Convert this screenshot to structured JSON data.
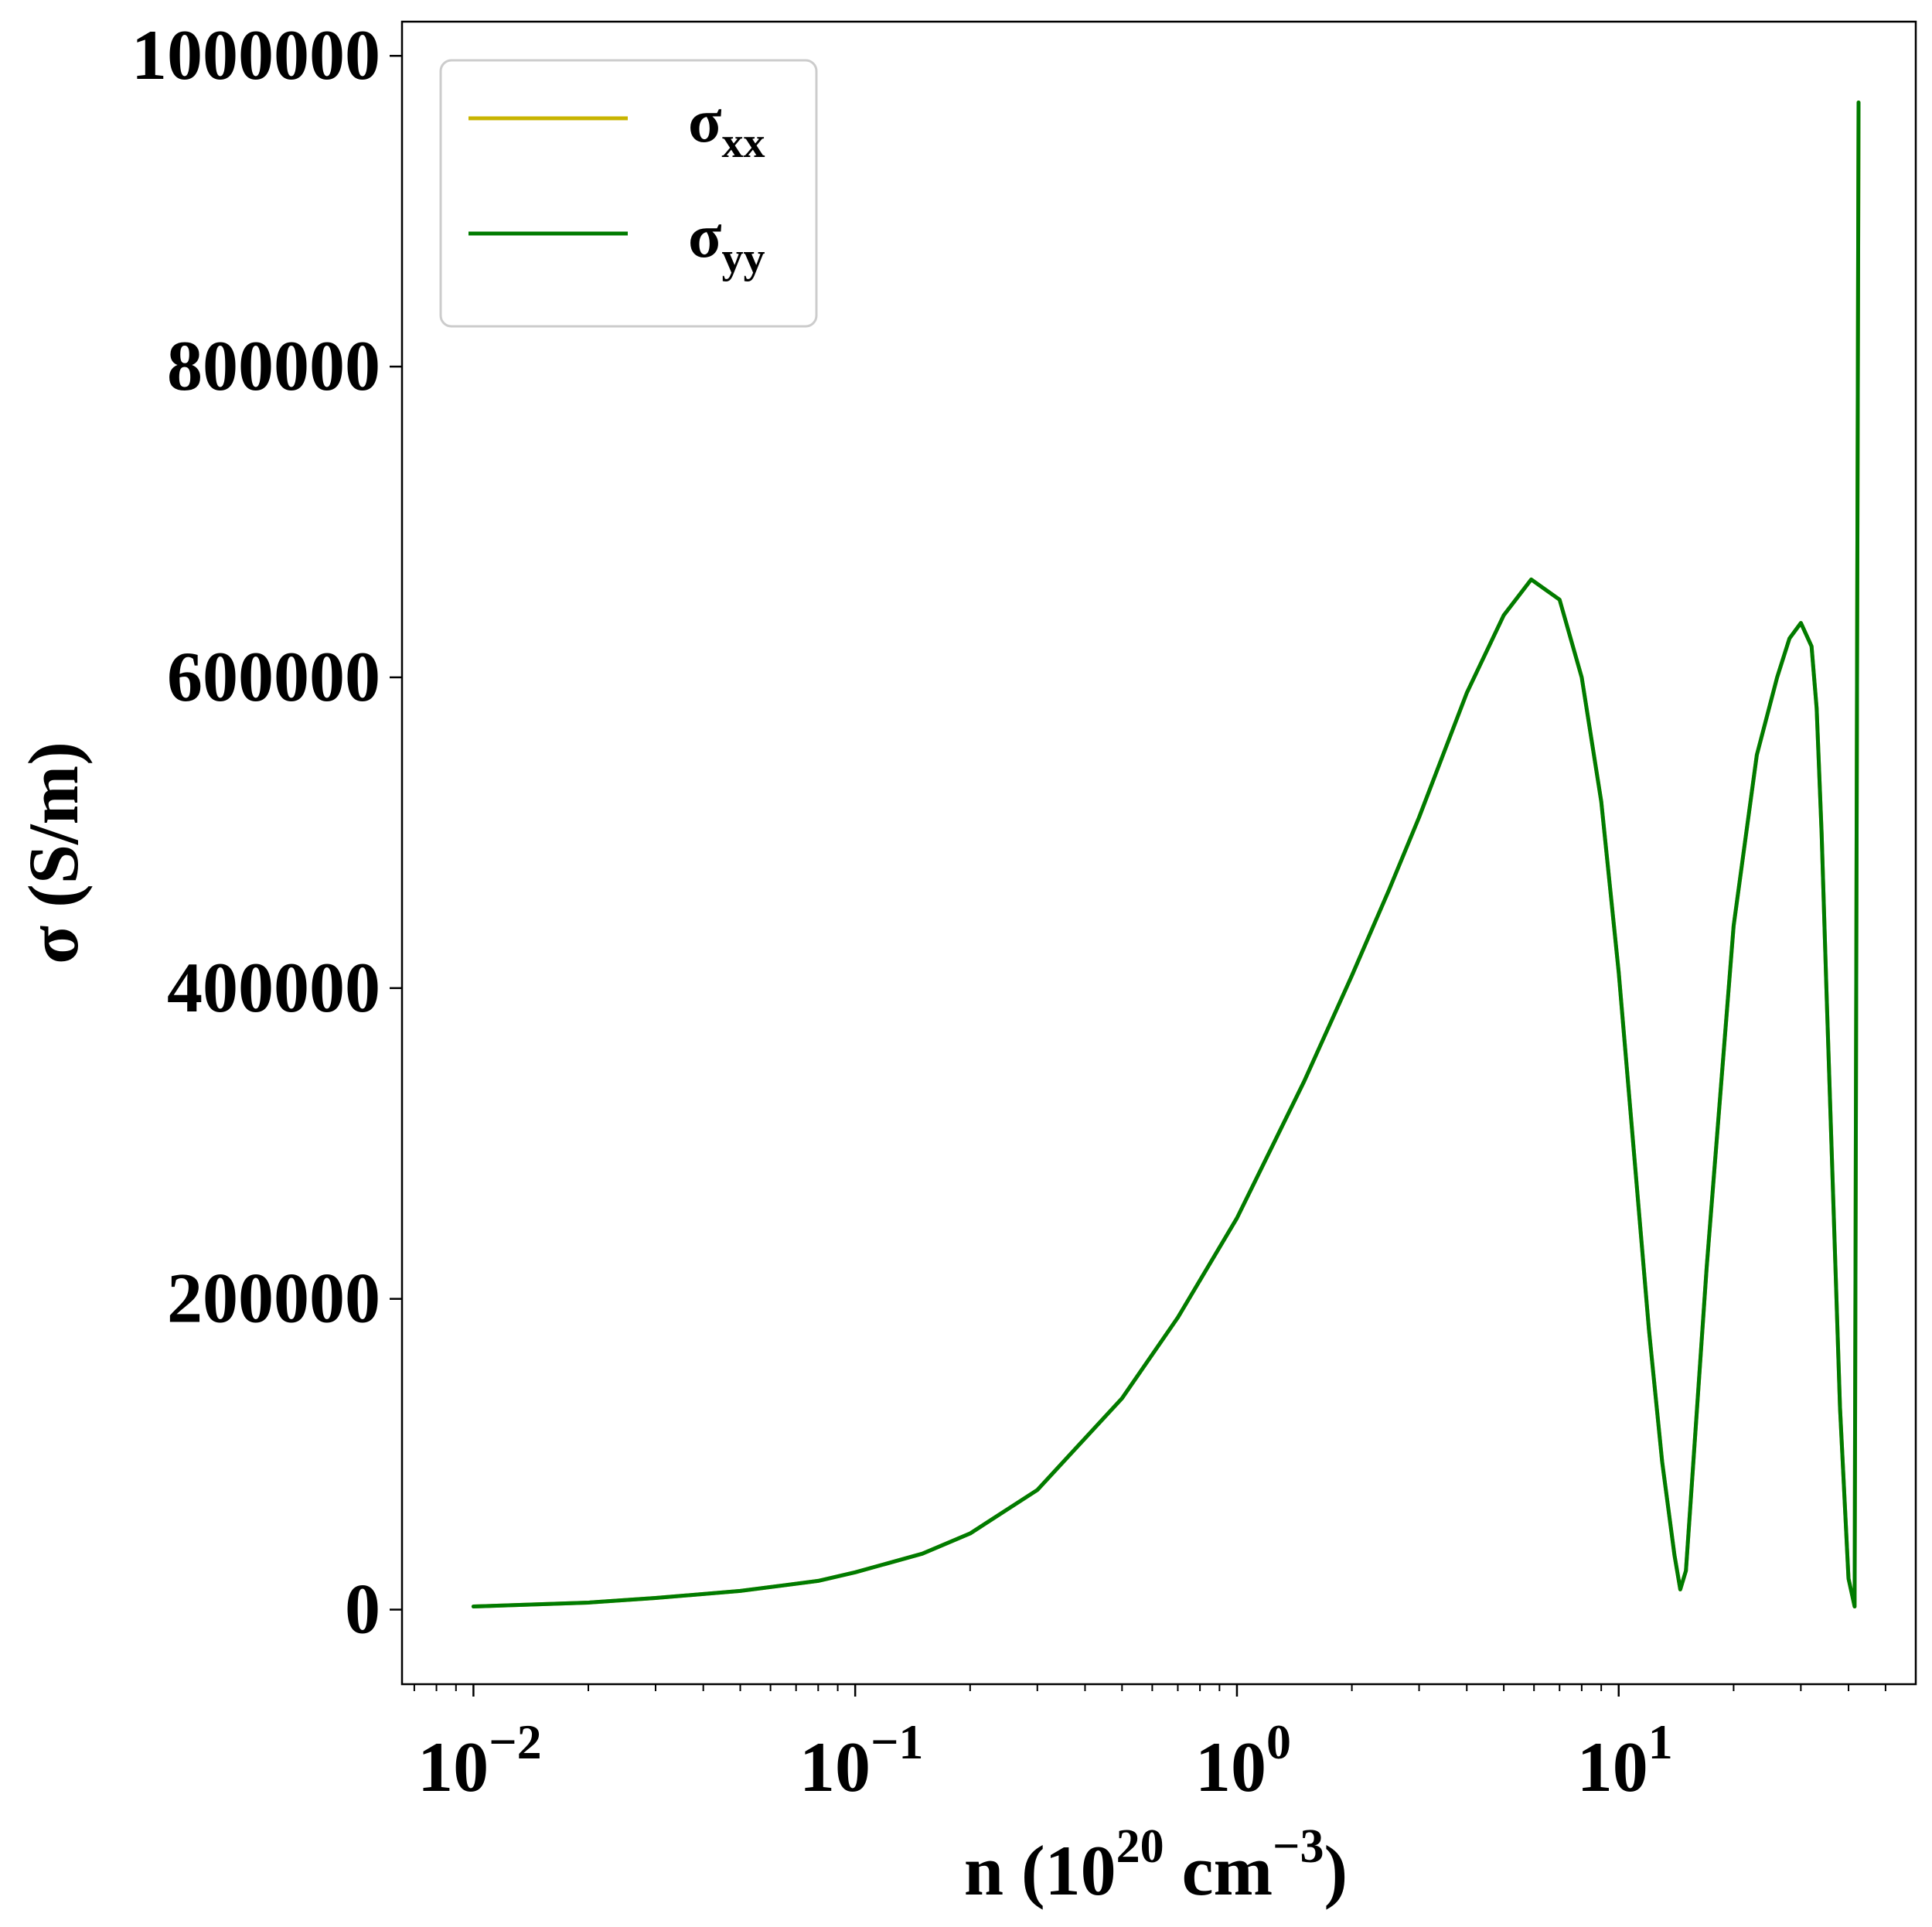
{
  "chart_data": {
    "type": "line",
    "title": "",
    "xlabel": "n (10^20 cm^-3)",
    "xlabel_parts": {
      "prefix": "n (10",
      "exp1": "20",
      "middle": " cm",
      "exp2": "−3",
      "suffix": ")"
    },
    "ylabel": "σ (S/m)",
    "xscale": "log",
    "xlim": [
      0.0065,
      60
    ],
    "ylim": [
      -48000,
      1022000
    ],
    "x_ticks": [
      {
        "value": 0.01,
        "base": "10",
        "exp": "−2"
      },
      {
        "value": 0.1,
        "base": "10",
        "exp": "−1"
      },
      {
        "value": 1,
        "base": "10",
        "exp": "0"
      },
      {
        "value": 10,
        "base": "10",
        "exp": "1"
      }
    ],
    "y_ticks": [
      {
        "value": 0,
        "label": "0"
      },
      {
        "value": 200000,
        "label": "200000"
      },
      {
        "value": 400000,
        "label": "400000"
      },
      {
        "value": 600000,
        "label": "600000"
      },
      {
        "value": 800000,
        "label": "800000"
      },
      {
        "value": 1000000,
        "label": "1000000"
      }
    ],
    "grid": false,
    "legend_position": "top-left",
    "series": [
      {
        "name": "σ",
        "subscript": "xx",
        "color": "#c8b400",
        "x": [
          0.01,
          0.02,
          0.03,
          0.05,
          0.08,
          0.1,
          0.15,
          0.2,
          0.3,
          0.5,
          0.7,
          1.0,
          1.5,
          2.0,
          2.5,
          3.0,
          4.0,
          5.0,
          5.9,
          7.0,
          8.0,
          9.0,
          10.0,
          11.0,
          12.0,
          13.0,
          14.0,
          14.5,
          15.0,
          17.0,
          20.0,
          23.0,
          26.0,
          28.0,
          30.0,
          32.0,
          33.0,
          34.0,
          35.0,
          38.0,
          40.0,
          41.5,
          42.0,
          42.5
        ],
        "y": [
          2000,
          4500,
          7500,
          12000,
          18500,
          24000,
          36000,
          49000,
          77000,
          136000,
          188000,
          252000,
          340000,
          408000,
          463000,
          510000,
          590000,
          640000,
          663000,
          650000,
          600000,
          520000,
          410000,
          290000,
          180000,
          95000,
          35000,
          13000,
          25000,
          220000,
          440000,
          550000,
          600000,
          625000,
          635000,
          620000,
          580000,
          500000,
          400000,
          130000,
          20000,
          2000,
          500000,
          970000
        ]
      },
      {
        "name": "σ",
        "subscript": "yy",
        "color": "#007b00",
        "x": [
          0.01,
          0.02,
          0.03,
          0.05,
          0.08,
          0.1,
          0.15,
          0.2,
          0.3,
          0.5,
          0.7,
          1.0,
          1.5,
          2.0,
          2.5,
          3.0,
          4.0,
          5.0,
          5.9,
          7.0,
          8.0,
          9.0,
          10.0,
          11.0,
          12.0,
          13.0,
          14.0,
          14.5,
          15.0,
          17.0,
          20.0,
          23.0,
          26.0,
          28.0,
          30.0,
          32.0,
          33.0,
          34.0,
          35.0,
          38.0,
          40.0,
          41.5,
          42.0,
          42.5
        ],
        "y": [
          2000,
          4500,
          7500,
          12000,
          18500,
          24000,
          36000,
          49000,
          77000,
          136000,
          188000,
          252000,
          340000,
          408000,
          463000,
          510000,
          590000,
          640000,
          663000,
          650000,
          600000,
          520000,
          410000,
          290000,
          180000,
          95000,
          35000,
          13000,
          25000,
          220000,
          440000,
          550000,
          600000,
          625000,
          635000,
          620000,
          580000,
          500000,
          400000,
          130000,
          20000,
          2000,
          500000,
          970000
        ]
      }
    ]
  }
}
